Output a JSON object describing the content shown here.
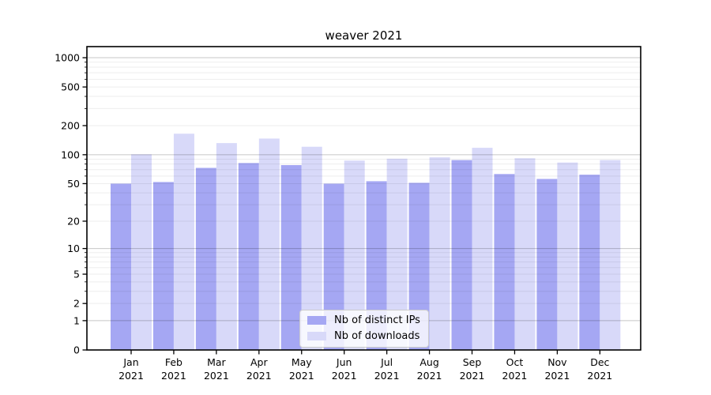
{
  "chart_data": {
    "type": "bar",
    "title": "weaver 2021",
    "yscale": "log1p",
    "grid": true,
    "legend_position": "lower center",
    "ylim": [
      0,
      1300
    ],
    "yticks": [
      0,
      1,
      2,
      5,
      10,
      20,
      50,
      100,
      200,
      500,
      1000
    ],
    "categories": [
      "Jan",
      "Feb",
      "Mar",
      "Apr",
      "May",
      "Jun",
      "Jul",
      "Aug",
      "Sep",
      "Oct",
      "Nov",
      "Dec"
    ],
    "year_label": "2021",
    "series": [
      {
        "name": "Nb of distinct IPs",
        "color": "#a5a7f3",
        "values": [
          50,
          52,
          73,
          82,
          78,
          50,
          53,
          51,
          88,
          63,
          56,
          62
        ]
      },
      {
        "name": "Nb of downloads",
        "color": "#d8d9f9",
        "values": [
          101,
          165,
          132,
          147,
          121,
          87,
          91,
          94,
          118,
          92,
          83,
          88
        ]
      }
    ],
    "colors": {
      "spine": "#000000",
      "major_grid": "rgba(0,0,0,0.22)",
      "minor_grid": "rgba(0,0,0,0.07)",
      "tick_text": "#000000"
    }
  }
}
